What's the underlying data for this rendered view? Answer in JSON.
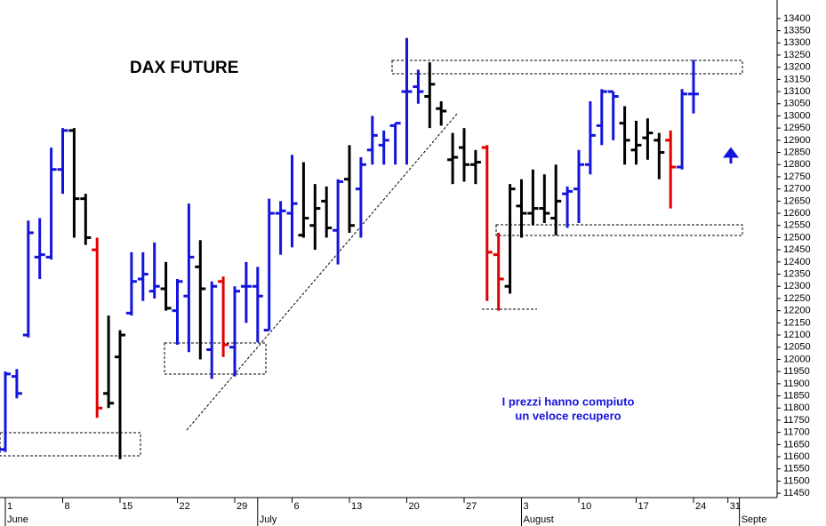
{
  "chart_data": {
    "type": "ohlc",
    "title": "DAX FUTURE",
    "annotation": [
      "I prezzi hanno compiuto",
      "un veloce recupero"
    ],
    "open": [
      11630,
      11930,
      12100,
      12420,
      12420,
      12780,
      12940,
      12660,
      12450,
      11860,
      12010,
      12190,
      12330,
      12280,
      12290,
      12200,
      12260,
      12380,
      12040,
      12320,
      12050,
      12300,
      12300,
      12120,
      12600,
      12600,
      12510,
      12550,
      12650,
      12530,
      12740,
      12700,
      12860,
      12880,
      12960,
      13100,
      13120,
      13080,
      13030,
      12820,
      12870,
      12800,
      12870,
      12430,
      12300,
      12630,
      12600,
      12620,
      12580,
      12680,
      12700,
      12800,
      12960,
      13100,
      12970,
      12860,
      12910,
      12900,
      12900,
      12790,
      13090
    ],
    "high": [
      11950,
      11960,
      12570,
      12580,
      12870,
      12950,
      12950,
      12680,
      12500,
      12180,
      12120,
      12440,
      12440,
      12480,
      12400,
      12330,
      12640,
      12490,
      12320,
      12340,
      12300,
      12400,
      12380,
      12660,
      12650,
      12840,
      12810,
      12720,
      12710,
      12740,
      12880,
      12830,
      13000,
      12940,
      12970,
      13320,
      13190,
      13220,
      13060,
      12930,
      12950,
      12860,
      12880,
      12520,
      12720,
      12740,
      12780,
      12760,
      12800,
      12710,
      12860,
      13060,
      13110,
      13100,
      13040,
      12980,
      12990,
      12930,
      12940,
      13110,
      13230
    ],
    "low": [
      11620,
      11840,
      12090,
      12330,
      12410,
      12680,
      12500,
      12470,
      11760,
      11800,
      11590,
      12180,
      12240,
      12250,
      12200,
      12060,
      12030,
      12000,
      11920,
      12010,
      11930,
      12150,
      12070,
      12120,
      12430,
      12460,
      12500,
      12450,
      12500,
      12390,
      12520,
      12500,
      12800,
      12800,
      12800,
      12800,
      13050,
      12950,
      12960,
      12720,
      12730,
      12720,
      12240,
      12200,
      12270,
      12500,
      12550,
      12560,
      12510,
      12540,
      12560,
      12760,
      12880,
      12900,
      12800,
      12800,
      12820,
      12740,
      12620,
      12780,
      13010
    ],
    "close": [
      11940,
      11860,
      12520,
      12430,
      12780,
      12940,
      12660,
      12500,
      11800,
      11820,
      12100,
      12320,
      12350,
      12300,
      12210,
      12320,
      12420,
      12290,
      12300,
      12060,
      12280,
      12300,
      12260,
      12600,
      12610,
      12640,
      12580,
      12620,
      12540,
      12730,
      12550,
      12800,
      12920,
      12900,
      12970,
      13100,
      13100,
      13130,
      13020,
      12830,
      12800,
      12810,
      12440,
      12330,
      12700,
      12600,
      12620,
      12600,
      12650,
      12690,
      12800,
      12920,
      13100,
      13080,
      12900,
      12880,
      12930,
      12850,
      12790,
      13090,
      13090
    ],
    "colors": [
      "#1414dc",
      "#1414dc",
      "#1414dc",
      "#1414dc",
      "#1414dc",
      "#1414dc",
      "#000000",
      "#000000",
      "#e00000",
      "#000000",
      "#000000",
      "#1414dc",
      "#1414dc",
      "#1414dc",
      "#000000",
      "#1414dc",
      "#1414dc",
      "#000000",
      "#1414dc",
      "#e00000",
      "#1414dc",
      "#1414dc",
      "#1414dc",
      "#1414dc",
      "#1414dc",
      "#1414dc",
      "#000000",
      "#000000",
      "#000000",
      "#1414dc",
      "#000000",
      "#1414dc",
      "#1414dc",
      "#1414dc",
      "#1414dc",
      "#1414dc",
      "#1414dc",
      "#000000",
      "#000000",
      "#000000",
      "#000000",
      "#000000",
      "#e00000",
      "#e00000",
      "#000000",
      "#000000",
      "#000000",
      "#000000",
      "#000000",
      "#1414dc",
      "#1414dc",
      "#1414dc",
      "#1414dc",
      "#1414dc",
      "#000000",
      "#000000",
      "#000000",
      "#000000",
      "#e00000",
      "#1414dc",
      "#1414dc"
    ],
    "xticks": [
      {
        "value": 0,
        "label": "1"
      },
      {
        "value": 5,
        "label": "8"
      },
      {
        "value": 10,
        "label": "15"
      },
      {
        "value": 15,
        "label": "22"
      },
      {
        "value": 20,
        "label": "29"
      },
      {
        "value": 25,
        "label": "6"
      },
      {
        "value": 30,
        "label": "13"
      },
      {
        "value": 35,
        "label": "20"
      },
      {
        "value": 40,
        "label": "27"
      },
      {
        "value": 45,
        "label": "3"
      },
      {
        "value": 50,
        "label": "10"
      },
      {
        "value": 55,
        "label": "17"
      },
      {
        "value": 60,
        "label": "24"
      },
      {
        "value": 63,
        "label": "31"
      }
    ],
    "month_labels": [
      {
        "value": 0,
        "label": "June"
      },
      {
        "value": 22,
        "label": "July"
      },
      {
        "value": 45,
        "label": "August"
      },
      {
        "value": 64,
        "label": "Septe"
      }
    ],
    "ylim": [
      11425,
      13425
    ],
    "yticks": [
      11450,
      11500,
      11550,
      11600,
      11650,
      11700,
      11750,
      11800,
      11850,
      11900,
      11950,
      12000,
      12050,
      12100,
      12150,
      12200,
      12250,
      12300,
      12350,
      12400,
      12450,
      12500,
      12550,
      12600,
      12650,
      12700,
      12750,
      12800,
      12850,
      12900,
      12950,
      13000,
      13050,
      13100,
      13150,
      13200,
      13250,
      13300,
      13350,
      13400
    ]
  }
}
